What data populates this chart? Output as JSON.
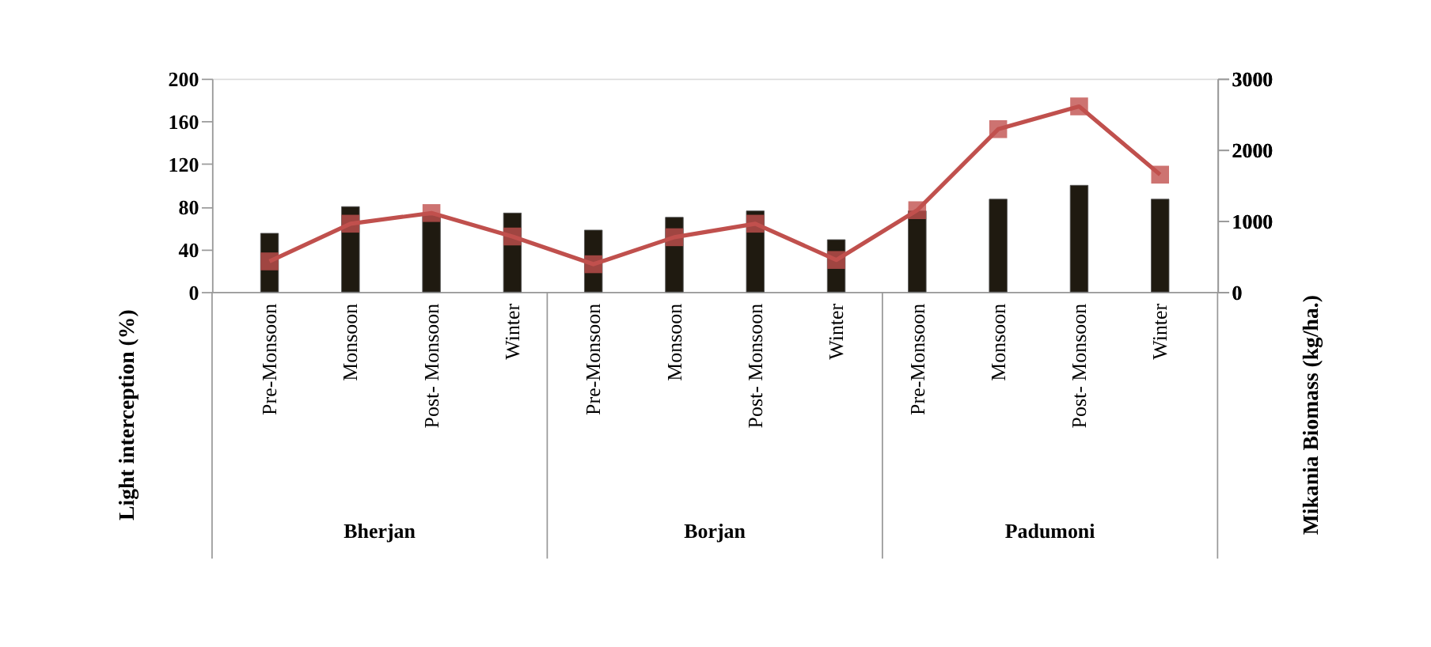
{
  "chart_data": {
    "type": "bar",
    "categories": [
      "Pre-Monsoon",
      "Monsoon",
      "Post- Monsoon",
      "Winter",
      "Pre-Monsoon",
      "Monsoon",
      "Post- Monsoon",
      "Winter",
      "Pre-Monsoon",
      "Monsoon",
      "Post- Monsoon",
      "Winter"
    ],
    "series": [
      {
        "color": "#1f1a10",
        "values": [
          55,
          80,
          72,
          74,
          58,
          70,
          76,
          49,
          76,
          87,
          100,
          87
        ]
      },
      {
        "type": "line",
        "axis": "y2",
        "color": "#c0504d",
        "marker": "square",
        "values": [
          430,
          960,
          1110,
          780,
          390,
          770,
          960,
          450,
          1150,
          2290,
          2610,
          1650
        ]
      }
    ],
    "ylabel": "Light interception (%)",
    "y2label": "Mikania Biomass (kg/ha.)",
    "ylim": [
      0,
      200
    ],
    "yticks": [
      0,
      40,
      80,
      120,
      160,
      200
    ],
    "y2lim": [
      0,
      3000
    ],
    "y2ticks": [
      0,
      1000,
      2000,
      3000
    ],
    "annotations": [
      "Bherjan",
      "Borjan",
      "Padumoni"
    ],
    "grid": false,
    "legend": false
  }
}
